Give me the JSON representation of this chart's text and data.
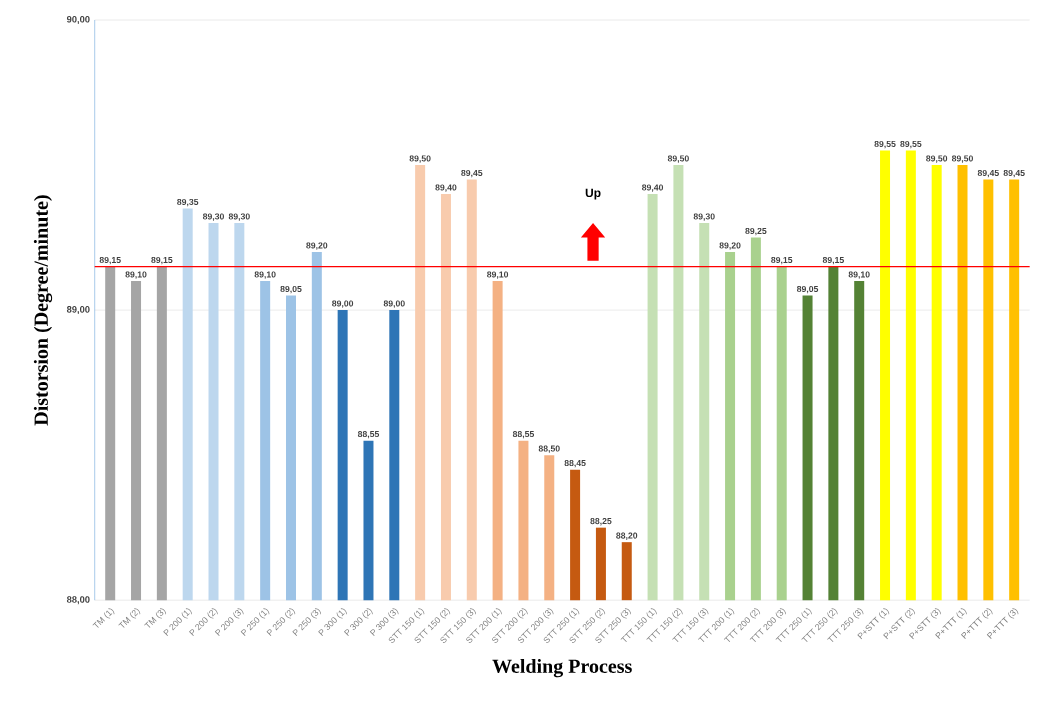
{
  "chart_data": {
    "type": "bar",
    "xlabel": "Welding Process",
    "ylabel": "Distorsion (Degree/minute)",
    "categories": [
      "TM (1)",
      "TM (2)",
      "TM (3)",
      "P 200 (1)",
      "P 200 (2)",
      "P 200 (3)",
      "P 250 (1)",
      "P 250 (2)",
      "P 250 (3)",
      "P 300 (1)",
      "P 300 (2)",
      "P 300 (3)",
      "STT 150 (1)",
      "STT 150 (2)",
      "STT 150 (3)",
      "STT 200 (1)",
      "STT 200 (2)",
      "STT 200 (3)",
      "STT 250 (1)",
      "STT 250 (2)",
      "STT 250 (3)",
      "TTT 150 (1)",
      "TTT 150 (2)",
      "TTT 150 (3)",
      "TTT 200 (1)",
      "TTT 200 (2)",
      "TTT 200 (3)",
      "TTT 250 (1)",
      "TTT 250 (2)",
      "TTT 250 (3)",
      "P+STT (1)",
      "P+STT (2)",
      "P+STT (3)",
      "P+TTT (1)",
      "P+TTT (2)",
      "P+TTT (3)"
    ],
    "values": [
      89.15,
      89.1,
      89.15,
      89.35,
      89.3,
      89.3,
      89.1,
      89.05,
      89.2,
      89.0,
      88.55,
      89.0,
      89.5,
      89.4,
      89.45,
      89.1,
      88.55,
      88.5,
      88.45,
      88.25,
      88.2,
      89.4,
      89.5,
      89.3,
      89.2,
      89.25,
      89.15,
      89.05,
      89.15,
      89.1,
      89.55,
      89.55,
      89.5,
      89.5,
      89.45,
      89.45
    ],
    "value_labels": [
      "89,15",
      "89,10",
      "89,15",
      "89,35",
      "89,30",
      "89,30",
      "89,10",
      "89,05",
      "89,20",
      "89,00",
      "88,55",
      "89,00",
      "89,50",
      "89,40",
      "89,45",
      "89,10",
      "88,55",
      "88,50",
      "88,45",
      "88,25",
      "88,20",
      "89,40",
      "89,50",
      "89,30",
      "89,20",
      "89,25",
      "89,15",
      "89,05",
      "89,15",
      "89,10",
      "89,55",
      "89,55",
      "89,50",
      "89,50",
      "89,45",
      "89,45"
    ],
    "colors": [
      "#a5a5a5",
      "#a5a5a5",
      "#a5a5a5",
      "#bdd7ee",
      "#bdd7ee",
      "#bdd7ee",
      "#9dc3e6",
      "#9dc3e6",
      "#9dc3e6",
      "#2e75b6",
      "#2e75b6",
      "#2e75b6",
      "#f8cbad",
      "#f8cbad",
      "#f8cbad",
      "#f4b183",
      "#f4b183",
      "#f4b183",
      "#c55a11",
      "#c55a11",
      "#c55a11",
      "#c5e0b4",
      "#c5e0b4",
      "#c5e0b4",
      "#a9d18e",
      "#a9d18e",
      "#a9d18e",
      "#548235",
      "#548235",
      "#548235",
      "#ffff00",
      "#ffff00",
      "#ffff00",
      "#ffc000",
      "#ffc000",
      "#ffc000"
    ],
    "ylim": [
      88,
      90
    ],
    "yticks": [
      {
        "value": 88,
        "label": "88,00"
      },
      {
        "value": 89,
        "label": "89,00"
      },
      {
        "value": 90,
        "label": "90,00"
      }
    ],
    "grid": "y",
    "ref_lines": [
      {
        "axis": "y",
        "value": 89.15,
        "color": "#ff0000"
      }
    ],
    "annotations": [
      "Up"
    ]
  }
}
